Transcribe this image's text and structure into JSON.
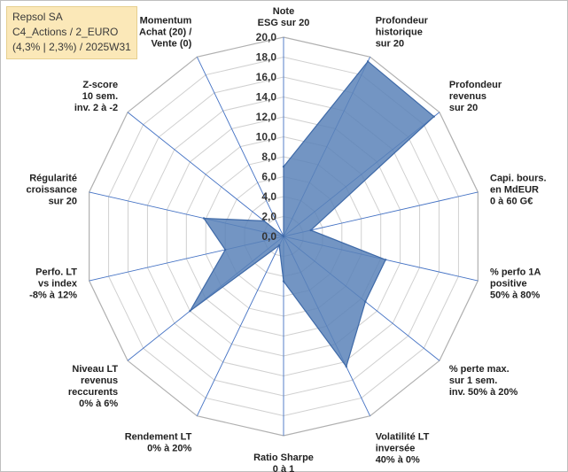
{
  "info": {
    "line1": "Repsol SA",
    "line2": "C4_Actions / 2_EURO",
    "line3": "(4,3% | 2,3%) / 2025W31"
  },
  "chart_data": {
    "type": "radar",
    "r_range": [
      0,
      20
    ],
    "r_step": 2,
    "tick_labels": [
      "0,0",
      "2,0",
      "4,0",
      "6,0",
      "8,0",
      "10,0",
      "12,0",
      "14,0",
      "16,0",
      "18,0",
      "20,0"
    ],
    "grid": true,
    "colors": {
      "fill": "#5b82b8",
      "stroke": "#3f6aa8",
      "spoke": "#4472c4",
      "ring": "#d0d0d0"
    },
    "categories": [
      [
        "Note",
        "ESG sur 20"
      ],
      [
        "Profondeur",
        "historique",
        "sur 20"
      ],
      [
        "Profondeur",
        "revenus",
        "sur 20"
      ],
      [
        "Capi. bours.",
        "en MdEUR",
        "0 à 60 G€"
      ],
      [
        "% perfo 1A",
        "positive",
        "50% à 80%"
      ],
      [
        "% perte max.",
        "sur 1 sem.",
        "inv. 50% à 20%"
      ],
      [
        "Volatilité LT",
        "inversée",
        "40% à 0%"
      ],
      [
        "Ratio Sharpe",
        "0 à 1"
      ],
      [
        "Rendement LT",
        "0% à 20%"
      ],
      [
        "Niveau LT",
        "revenus",
        "reccurents",
        "0% à 6%"
      ],
      [
        "Perfo. LT",
        "vs index",
        "-8% à 12%"
      ],
      [
        "Régularité",
        "croissance",
        "sur 20"
      ],
      [
        "Z-score",
        "10 sem.",
        "inv. 2 à -2"
      ],
      [
        "Momentum",
        "Achat (20) /",
        "Vente (0)"
      ]
    ],
    "values": [
      7.0,
      19.5,
      19.3,
      2.8,
      10.5,
      10.5,
      14.5,
      4.5,
      1.0,
      12.0,
      6.0,
      8.2,
      2.5,
      0.0
    ]
  }
}
